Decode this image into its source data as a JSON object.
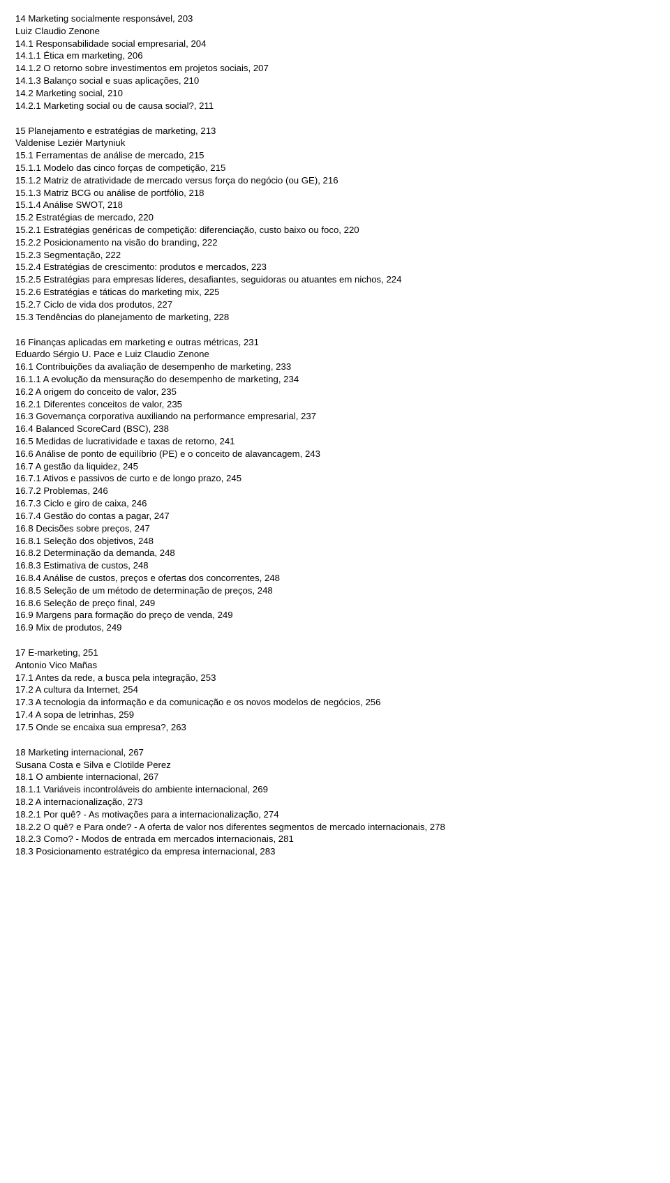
{
  "blocks": [
    {
      "lines": [
        "14 Marketing socialmente responsável, 203",
        "Luiz Claudio Zenone",
        "14.1 Responsabilidade social empresarial, 204",
        "14.1.1 Ética em marketing, 206",
        "14.1.2 O retorno sobre investimentos em projetos sociais, 207",
        "14.1.3 Balanço social e suas aplicações, 210",
        "14.2 Marketing social, 210",
        "14.2.1 Marketing social ou de causa social?, 211"
      ]
    },
    {
      "lines": [
        "15 Planejamento e estratégias de marketing, 213",
        "Valdenise Leziér Martyniuk",
        "15.1 Ferramentas de análise de mercado, 215",
        "15.1.1 Modelo das cinco forças de competição, 215",
        "15.1.2 Matriz de atratividade de mercado versus força do negócio (ou GE), 216",
        "15.1.3 Matriz BCG ou análise de portfólio, 218",
        "15.1.4 Análise SWOT, 218",
        "15.2 Estratégias de mercado, 220",
        "15.2.1 Estratégias genéricas de competição: diferenciação, custo baixo ou foco, 220",
        "15.2.2 Posicionamento na visão do branding, 222",
        "15.2.3 Segmentação, 222",
        "15.2.4 Estratégias de crescimento: produtos e mercados, 223",
        "15.2.5 Estratégias para empresas líderes, desafiantes, seguidoras ou atuantes em nichos, 224",
        "15.2.6 Estratégias e táticas do marketing mix, 225",
        "15.2.7 Ciclo de vida dos produtos, 227",
        "15.3 Tendências do planejamento de marketing, 228"
      ]
    },
    {
      "lines": [
        "16 Finanças aplicadas em marketing e outras métricas, 231",
        "Eduardo Sérgio U. Pace e Luiz Claudio Zenone",
        "16.1 Contribuições da avaliação de desempenho de marketing, 233",
        "16.1.1 A evolução da mensuração do desempenho de marketing, 234",
        "16.2 A origem do conceito de valor, 235",
        "16.2.1 Diferentes conceitos de valor, 235",
        "16.3 Governança corporativa auxiliando na performance empresarial, 237",
        "16.4 Balanced ScoreCard (BSC), 238",
        "16.5 Medidas de lucratividade e taxas de retorno, 241",
        "16.6 Análise de ponto de equilíbrio (PE) e o conceito de alavancagem, 243",
        "16.7 A gestão da liquidez, 245",
        "16.7.1 Ativos e passivos de curto e de longo prazo, 245",
        "16.7.2 Problemas, 246",
        "16.7.3 Ciclo e giro de caixa, 246",
        "16.7.4 Gestão do contas a pagar, 247",
        "16.8 Decisões sobre preços, 247",
        "16.8.1 Seleção dos objetivos, 248",
        "16.8.2 Determinação da demanda, 248",
        "16.8.3 Estimativa de custos, 248",
        "16.8.4 Análise de custos, preços e ofertas dos concorrentes, 248",
        "16.8.5 Seleção de um método de determinação de preços, 248",
        "16.8.6 Seleção de preço final, 249",
        "16.9 Margens para formação do preço de venda, 249",
        "16.9 Mix de produtos, 249"
      ]
    },
    {
      "lines": [
        "17 E-marketing, 251",
        "Antonio Vico Mañas",
        "17.1 Antes da rede, a busca pela integração, 253",
        "17.2 A cultura da Internet, 254",
        "17.3 A tecnologia da informação e da comunicação e os novos modelos de negócios, 256",
        "17.4 A sopa de letrinhas, 259",
        "17.5 Onde se encaixa sua empresa?, 263"
      ]
    },
    {
      "lines": [
        "18 Marketing internacional, 267",
        "Susana Costa e Silva e Clotilde Perez",
        "18.1 O ambiente internacional, 267",
        "18.1.1 Variáveis incontroláveis do ambiente internacional, 269",
        "18.2 A internacionalização, 273",
        "18.2.1 Por quê? - As motivações para a internacionalização, 274",
        "18.2.2 O quê? e Para onde? - A oferta de valor nos diferentes segmentos de mercado internacionais, 278",
        "18.2.3 Como? - Modos de entrada em mercados internacionais, 281",
        "18.3 Posicionamento estratégico da empresa internacional, 283"
      ]
    }
  ]
}
